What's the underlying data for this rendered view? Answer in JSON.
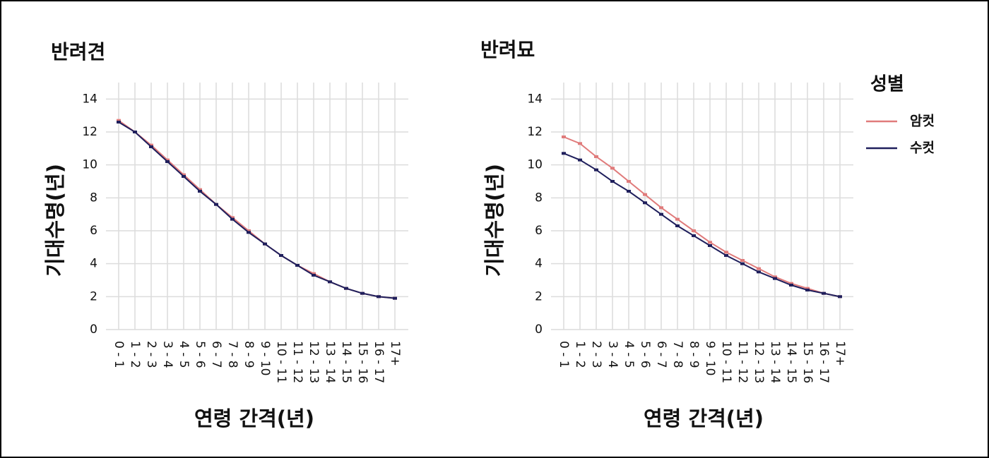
{
  "chart_data": [
    {
      "type": "line",
      "title": "반려견",
      "x_label": "연령 간격(년)",
      "y_label": "기대수명(년)",
      "categories": [
        "0 - 1",
        "1 - 2",
        "2 - 3",
        "3 - 4",
        "4 - 5",
        "5 - 6",
        "6 - 7",
        "7 - 8",
        "8 - 9",
        "9 - 10",
        "10 - 11",
        "11 - 12",
        "12 - 13",
        "13 - 14",
        "14 - 15",
        "15 - 16",
        "16 - 17",
        "17+"
      ],
      "series": [
        {
          "name": "암컷",
          "color": "#e07b7b",
          "values": [
            12.7,
            12.0,
            11.2,
            10.3,
            9.4,
            8.5,
            7.6,
            6.8,
            6.0,
            5.2,
            4.5,
            3.9,
            3.4,
            2.9,
            2.5,
            2.2,
            2.0,
            1.9
          ]
        },
        {
          "name": "수컷",
          "color": "#1f1f5c",
          "values": [
            12.6,
            12.0,
            11.1,
            10.2,
            9.3,
            8.4,
            7.6,
            6.7,
            5.9,
            5.2,
            4.5,
            3.9,
            3.3,
            2.9,
            2.5,
            2.2,
            2.0,
            1.9
          ]
        }
      ],
      "ylim": [
        0,
        15
      ],
      "yticks": [
        0,
        2,
        4,
        6,
        8,
        10,
        12,
        14
      ],
      "grid": true
    },
    {
      "type": "line",
      "title": "반려묘",
      "x_label": "연령 간격(년)",
      "y_label": "기대수명(년)",
      "legend_title": "성별",
      "categories": [
        "0 - 1",
        "1 - 2",
        "2 - 3",
        "3 - 4",
        "4 - 5",
        "5 - 6",
        "6 - 7",
        "7 - 8",
        "8 - 9",
        "9 - 10",
        "10 - 11",
        "11 - 12",
        "12 - 13",
        "13 - 14",
        "14 - 15",
        "15 - 16",
        "16 - 17",
        "17+"
      ],
      "series": [
        {
          "name": "암컷",
          "color": "#e07b7b",
          "values": [
            11.7,
            11.3,
            10.5,
            9.8,
            9.0,
            8.2,
            7.4,
            6.7,
            6.0,
            5.3,
            4.7,
            4.2,
            3.7,
            3.2,
            2.8,
            2.5,
            2.2,
            2.0
          ]
        },
        {
          "name": "수컷",
          "color": "#1f1f5c",
          "values": [
            10.7,
            10.3,
            9.7,
            9.0,
            8.4,
            7.7,
            7.0,
            6.3,
            5.7,
            5.1,
            4.5,
            4.0,
            3.5,
            3.1,
            2.7,
            2.4,
            2.2,
            2.0
          ]
        }
      ],
      "ylim": [
        0,
        15
      ],
      "yticks": [
        0,
        2,
        4,
        6,
        8,
        10,
        12,
        14
      ],
      "grid": true
    }
  ]
}
